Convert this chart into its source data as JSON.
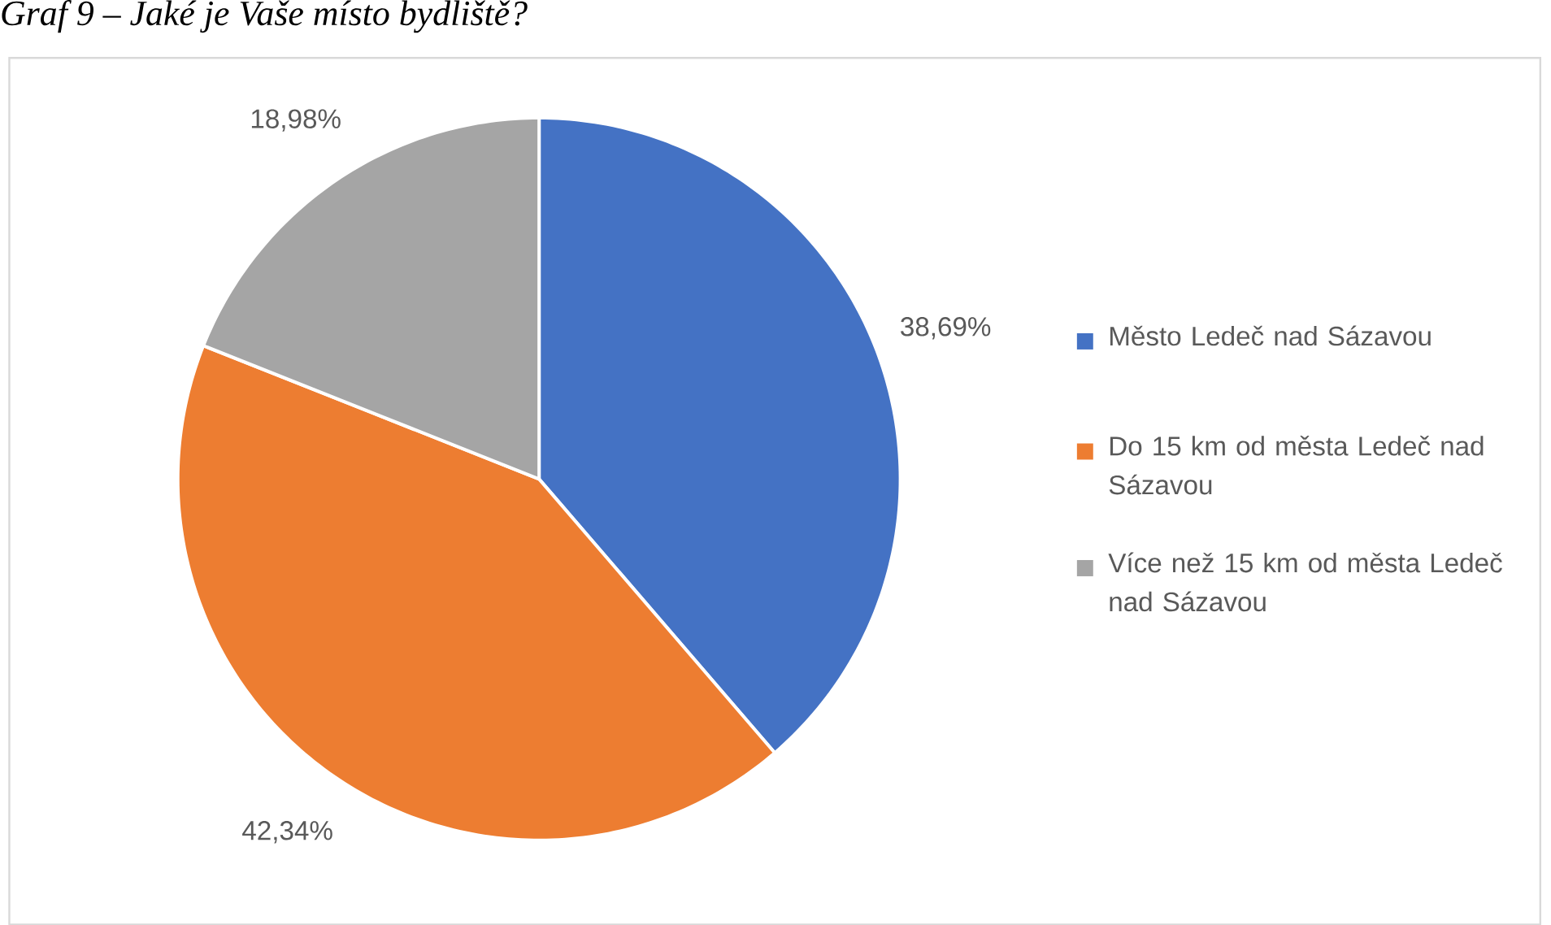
{
  "chart_data": {
    "type": "pie",
    "title": "Graf 9 – Jaké je Vaše místo bydliště?",
    "categories": [
      "Město Ledeč nad Sázavou",
      "Do 15 km od města Ledeč nad Sázavou",
      "Více než 15 km od města Ledeč nad Sázavou"
    ],
    "values": [
      38.69,
      42.34,
      18.98
    ],
    "colors": [
      "#4472c4",
      "#ed7d31",
      "#a5a5a5"
    ],
    "value_labels": [
      "38,69%",
      "42,34%",
      "18,98%"
    ],
    "legend": "right"
  }
}
